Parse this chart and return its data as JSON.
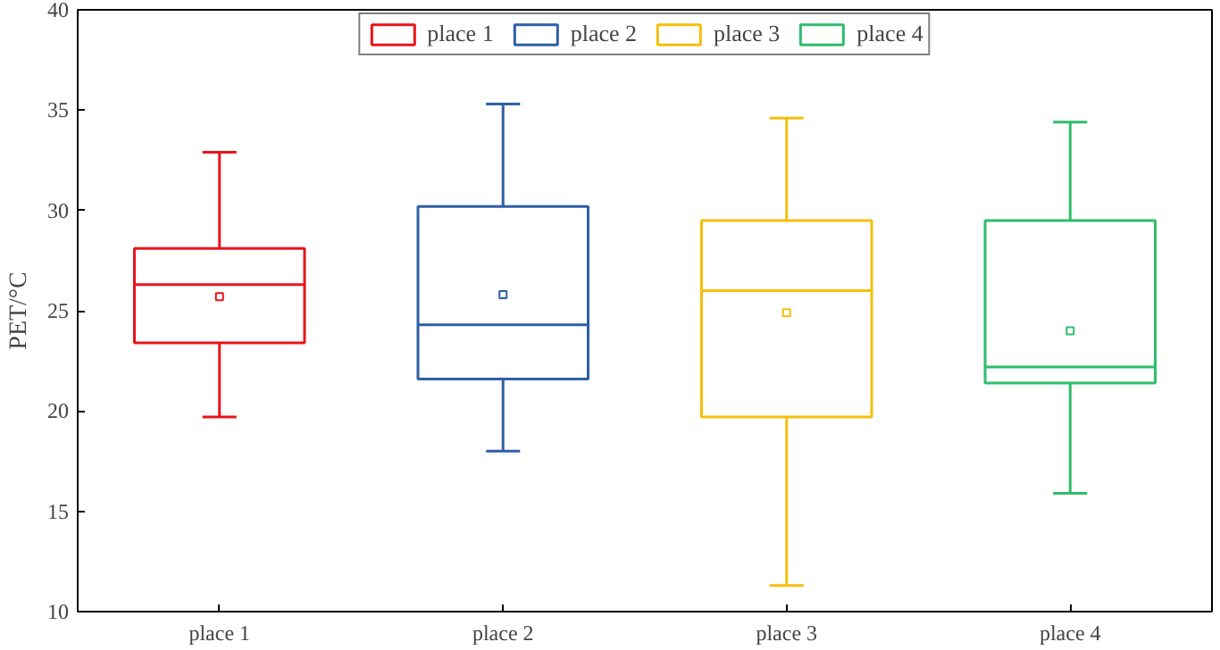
{
  "chart_data": {
    "type": "box",
    "ylabel": "PET/°C",
    "categories": [
      "place 1",
      "place 2",
      "place 3",
      "place 4"
    ],
    "ylim": [
      10,
      40
    ],
    "yticks": [
      10,
      15,
      20,
      25,
      30,
      35,
      40
    ],
    "grid": false,
    "legend": "top",
    "marker": "square",
    "series": [
      {
        "name": "place 1",
        "color": "#e8141a",
        "boxes": [
          {
            "low": 19.7,
            "q1": 23.4,
            "median": 26.3,
            "q3": 28.1,
            "high": 32.9,
            "mean": 25.7
          },
          null,
          null,
          null
        ]
      },
      {
        "name": "place 2",
        "color": "#2f5fa6",
        "boxes": [
          null,
          {
            "low": 18.0,
            "q1": 21.6,
            "median": 24.3,
            "q3": 30.2,
            "high": 35.3,
            "mean": 25.8
          },
          null,
          null
        ]
      },
      {
        "name": "place 3",
        "color": "#f5be0b",
        "boxes": [
          null,
          null,
          {
            "low": 11.3,
            "q1": 19.7,
            "median": 26.0,
            "q3": 29.5,
            "high": 34.6,
            "mean": 24.9
          },
          null
        ]
      },
      {
        "name": "place 4",
        "color": "#2ebd6b",
        "boxes": [
          null,
          null,
          null,
          {
            "low": 15.9,
            "q1": 21.4,
            "median": 22.2,
            "q3": 29.5,
            "high": 34.4,
            "mean": 24.0
          }
        ]
      }
    ]
  }
}
